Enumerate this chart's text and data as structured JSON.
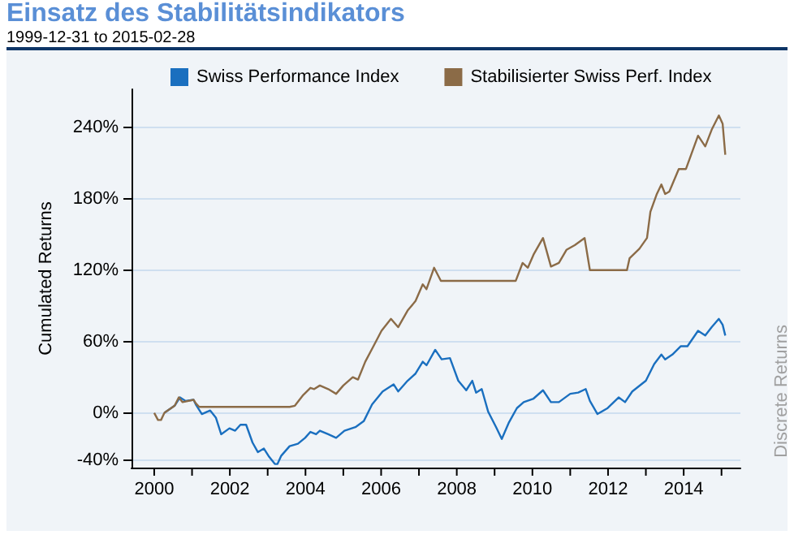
{
  "chart_data": {
    "type": "line",
    "title": "Einsatz des Stabilitätsindikators",
    "subtitle": "1999-12-31 to 2015-02-28",
    "ylabel": "Cumulated Returns",
    "annotations": [
      "Discrete Returns"
    ],
    "grid": "y",
    "legend": "top",
    "marker": "none",
    "line_style": "solid",
    "xlim": [
      1999.4,
      2015.5
    ],
    "ylim": [
      -46,
      272
    ],
    "xticks": [
      2000,
      {
        "value": 2001,
        "label": null
      },
      2002,
      {
        "value": 2003,
        "label": null
      },
      2004,
      {
        "value": 2005,
        "label": null
      },
      2006,
      {
        "value": 2007,
        "label": null
      },
      2008,
      {
        "value": 2009,
        "label": null
      },
      2010,
      {
        "value": 2011,
        "label": null
      },
      2012,
      {
        "value": 2013,
        "label": null
      },
      2014,
      {
        "value": 2015,
        "label": null
      }
    ],
    "yticks": [
      {
        "value": -40,
        "label": "-40%"
      },
      {
        "value": 0,
        "label": "0%"
      },
      {
        "value": 60,
        "label": "60%"
      },
      {
        "value": 120,
        "label": "120%"
      },
      {
        "value": 180,
        "label": "180%"
      },
      {
        "value": 240,
        "label": "240%"
      }
    ],
    "series": [
      {
        "name": "Swiss Performance Index",
        "color": "#1a6fbf",
        "x": [
          2000.27,
          2000.54,
          2000.68,
          2000.83,
          2001.04,
          2001.1,
          2001.26,
          2001.48,
          2001.63,
          2001.77,
          2001.99,
          2002.14,
          2002.28,
          2002.43,
          2002.6,
          2002.74,
          2002.9,
          2003.04,
          2003.19,
          2003.26,
          2003.36,
          2003.58,
          2003.8,
          2003.99,
          2004.13,
          2004.28,
          2004.38,
          2004.6,
          2004.81,
          2005.03,
          2005.32,
          2005.54,
          2005.76,
          2006.04,
          2006.33,
          2006.45,
          2006.7,
          2006.91,
          2007.1,
          2007.2,
          2007.43,
          2007.6,
          2007.82,
          2008.04,
          2008.25,
          2008.41,
          2008.51,
          2008.66,
          2008.83,
          2009.04,
          2009.19,
          2009.38,
          2009.59,
          2009.77,
          2010.03,
          2010.28,
          2010.49,
          2010.7,
          2011.0,
          2011.21,
          2011.41,
          2011.52,
          2011.72,
          2011.99,
          2012.28,
          2012.45,
          2012.64,
          2013.0,
          2013.22,
          2013.41,
          2013.51,
          2013.7,
          2013.92,
          2014.1,
          2014.38,
          2014.57,
          2014.74,
          2014.93,
          2015.03,
          2015.1
        ],
        "values": [
          0,
          6,
          13,
          10,
          11,
          7,
          -1,
          2,
          -4,
          -18,
          -13,
          -15,
          -10,
          -10,
          -25,
          -33,
          -30,
          -37,
          -43,
          -43,
          -36,
          -28,
          -26,
          -21,
          -16,
          -18,
          -15,
          -18,
          -21,
          -15,
          -12,
          -7,
          7,
          18,
          24,
          18,
          27,
          33,
          43,
          40,
          53,
          45,
          46,
          27,
          19,
          27,
          17,
          20,
          1,
          -12,
          -22,
          -8,
          4,
          9,
          12,
          19,
          9,
          9,
          16,
          17,
          20,
          10,
          -1,
          4,
          13,
          9,
          18,
          27,
          41,
          49,
          45,
          49,
          56,
          56,
          69,
          65,
          72,
          79,
          74,
          65
        ]
      },
      {
        "name": "Stabilisierter Swiss Perf. Index",
        "color": "#8b6b47",
        "x": [
          2000.0,
          2000.1,
          2000.18,
          2000.27,
          2000.54,
          2000.65,
          2000.75,
          2001.04,
          2001.1,
          2001.19,
          2003.58,
          2003.72,
          2003.94,
          2004.13,
          2004.23,
          2004.38,
          2004.6,
          2004.81,
          2005.0,
          2005.25,
          2005.39,
          2005.58,
          2005.78,
          2006.01,
          2006.26,
          2006.45,
          2006.7,
          2006.91,
          2007.1,
          2007.2,
          2007.4,
          2007.58,
          2009.56,
          2009.74,
          2009.88,
          2010.03,
          2010.28,
          2010.49,
          2010.7,
          2010.9,
          2011.12,
          2011.38,
          2011.52,
          2012.5,
          2012.57,
          2012.83,
          2013.03,
          2013.12,
          2013.29,
          2013.41,
          2013.51,
          2013.62,
          2013.87,
          2014.06,
          2014.38,
          2014.57,
          2014.74,
          2014.93,
          2015.03,
          2015.1
        ],
        "values": [
          0,
          -6,
          -6,
          0,
          6,
          13,
          9,
          11,
          8,
          5,
          5,
          6,
          15,
          21,
          20,
          23,
          20,
          16,
          23,
          30,
          28,
          43,
          55,
          69,
          79,
          72,
          86,
          94,
          108,
          104,
          122,
          111,
          111,
          126,
          122,
          133,
          147,
          123,
          126,
          137,
          141,
          147,
          120,
          120,
          130,
          138,
          147,
          169,
          184,
          192,
          184,
          186,
          205,
          205,
          233,
          224,
          238,
          250,
          243,
          217
        ]
      }
    ]
  }
}
